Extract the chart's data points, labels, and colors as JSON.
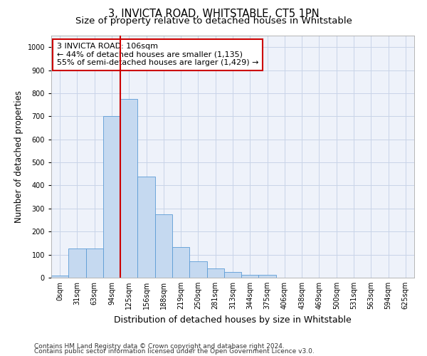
{
  "title": "3, INVICTA ROAD, WHITSTABLE, CT5 1PN",
  "subtitle": "Size of property relative to detached houses in Whitstable",
  "xlabel": "Distribution of detached houses by size in Whitstable",
  "ylabel": "Number of detached properties",
  "categories": [
    "0sqm",
    "31sqm",
    "63sqm",
    "94sqm",
    "125sqm",
    "156sqm",
    "188sqm",
    "219sqm",
    "250sqm",
    "281sqm",
    "313sqm",
    "344sqm",
    "375sqm",
    "406sqm",
    "438sqm",
    "469sqm",
    "500sqm",
    "531sqm",
    "563sqm",
    "594sqm",
    "625sqm"
  ],
  "bar_heights": [
    8,
    128,
    128,
    700,
    775,
    440,
    275,
    133,
    70,
    40,
    25,
    12,
    12,
    0,
    0,
    0,
    0,
    0,
    0,
    0,
    0
  ],
  "bar_color": "#c5d9f0",
  "bar_edge_color": "#5b9bd5",
  "grid_color": "#c8d4e8",
  "background_color": "#eef2fa",
  "vline_x": 3.5,
  "vline_color": "#cc0000",
  "annotation_text": "3 INVICTA ROAD: 106sqm\n← 44% of detached houses are smaller (1,135)\n55% of semi-detached houses are larger (1,429) →",
  "annotation_box_color": "#ffffff",
  "annotation_box_edge": "#cc0000",
  "ylim": [
    0,
    1050
  ],
  "yticks": [
    0,
    100,
    200,
    300,
    400,
    500,
    600,
    700,
    800,
    900,
    1000
  ],
  "footnote1": "Contains HM Land Registry data © Crown copyright and database right 2024.",
  "footnote2": "Contains public sector information licensed under the Open Government Licence v3.0.",
  "title_fontsize": 10.5,
  "subtitle_fontsize": 9.5,
  "xlabel_fontsize": 9,
  "ylabel_fontsize": 8.5,
  "tick_fontsize": 7,
  "annotation_fontsize": 8,
  "footnote_fontsize": 6.5
}
